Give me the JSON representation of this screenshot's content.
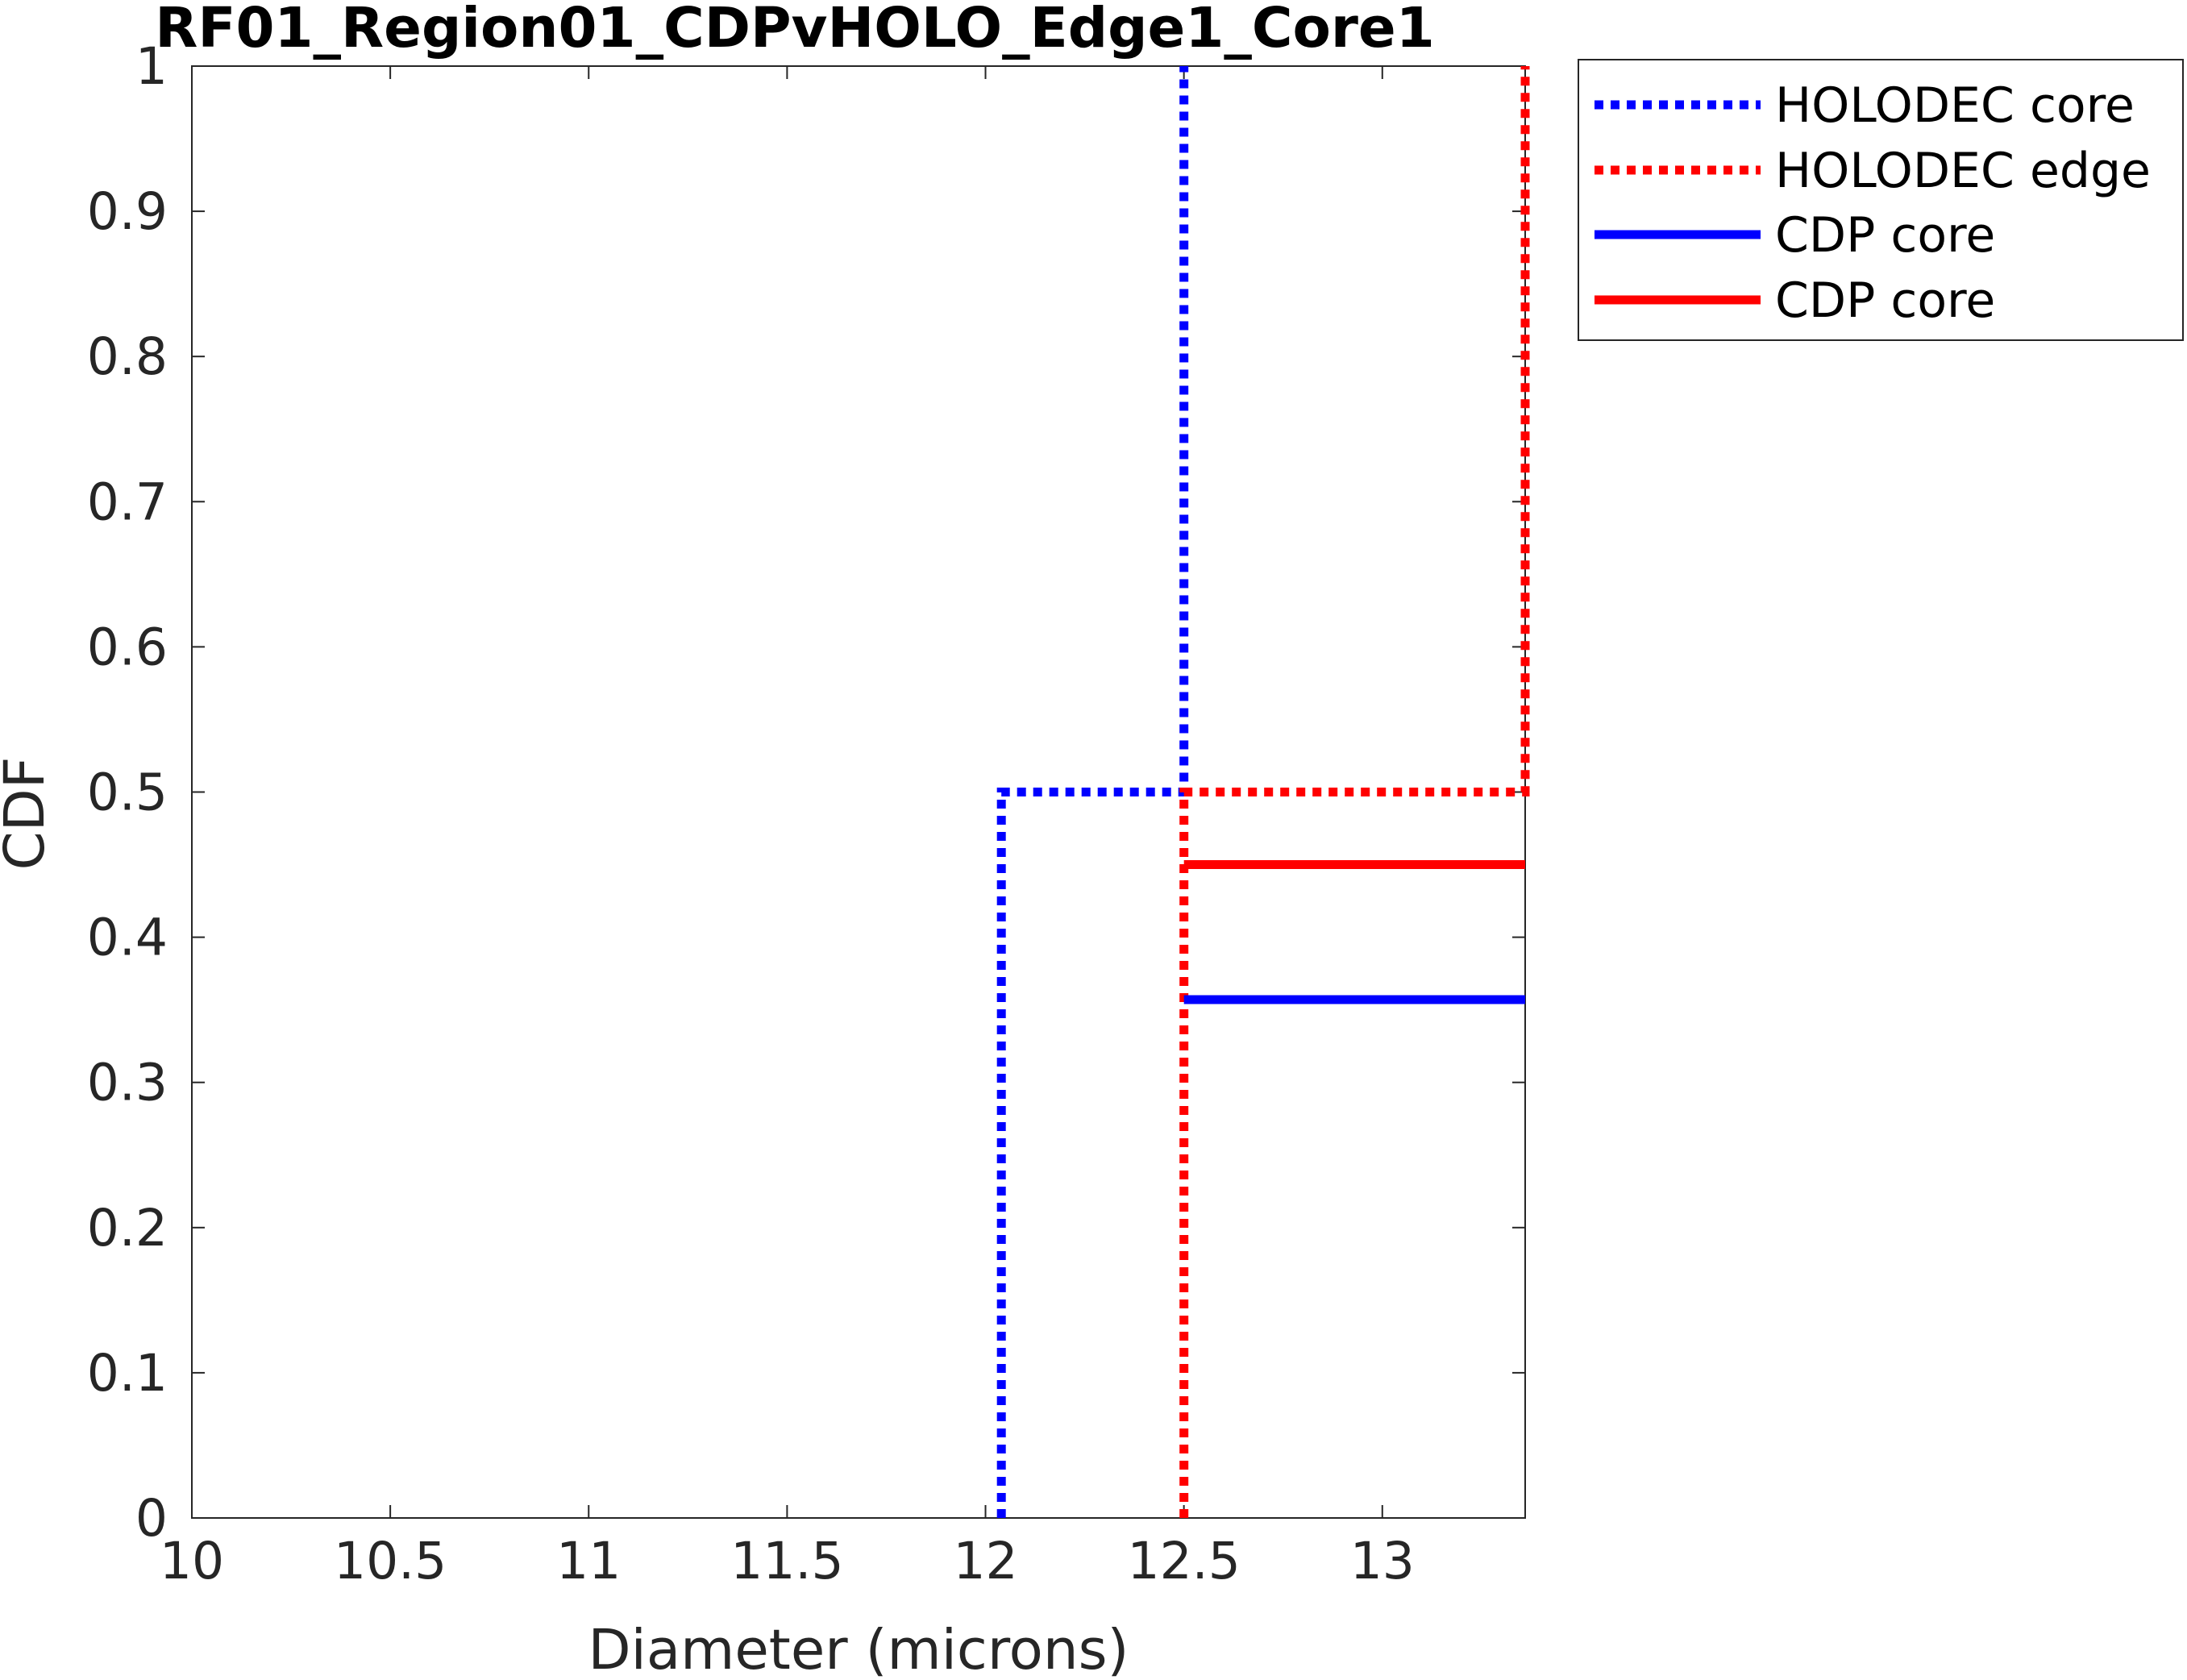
{
  "chart_data": {
    "type": "line",
    "title": "RF01_Region01_CDPvHOLO_Edge1_Core1",
    "xlabel": "Diameter (microns)",
    "ylabel": "CDF",
    "xlim": [
      10,
      13.36
    ],
    "ylim": [
      0,
      1
    ],
    "xticks": [
      10,
      10.5,
      11,
      11.5,
      12,
      12.5,
      13
    ],
    "xtick_labels": [
      "10",
      "10.5",
      "11",
      "11.5",
      "12",
      "12.5",
      "13"
    ],
    "yticks": [
      0,
      0.1,
      0.2,
      0.3,
      0.4,
      0.5,
      0.6,
      0.7,
      0.8,
      0.9,
      1
    ],
    "ytick_labels": [
      "0",
      "0.1",
      "0.2",
      "0.3",
      "0.4",
      "0.5",
      "0.6",
      "0.7",
      "0.8",
      "0.9",
      "1"
    ],
    "grid": false,
    "legend_position": "outside-top-right",
    "series": [
      {
        "name": "HOLODEC core",
        "color": "#0000ff",
        "style": "dotted",
        "points": [
          [
            12.04,
            0
          ],
          [
            12.04,
            0.5
          ],
          [
            12.5,
            0.5
          ],
          [
            12.5,
            1
          ]
        ]
      },
      {
        "name": "HOLODEC edge",
        "color": "#ff0000",
        "style": "dotted",
        "points": [
          [
            12.5,
            0
          ],
          [
            12.5,
            0.5
          ],
          [
            13.36,
            0.5
          ],
          [
            13.36,
            1
          ]
        ]
      },
      {
        "name": "CDP core",
        "color": "#0000ff",
        "style": "solid",
        "points": [
          [
            12.5,
            0.357
          ],
          [
            13.36,
            0.357
          ]
        ]
      },
      {
        "name": "CDP core",
        "color": "#ff0000",
        "style": "solid",
        "points": [
          [
            12.5,
            0.45
          ],
          [
            13.36,
            0.45
          ]
        ]
      }
    ]
  }
}
